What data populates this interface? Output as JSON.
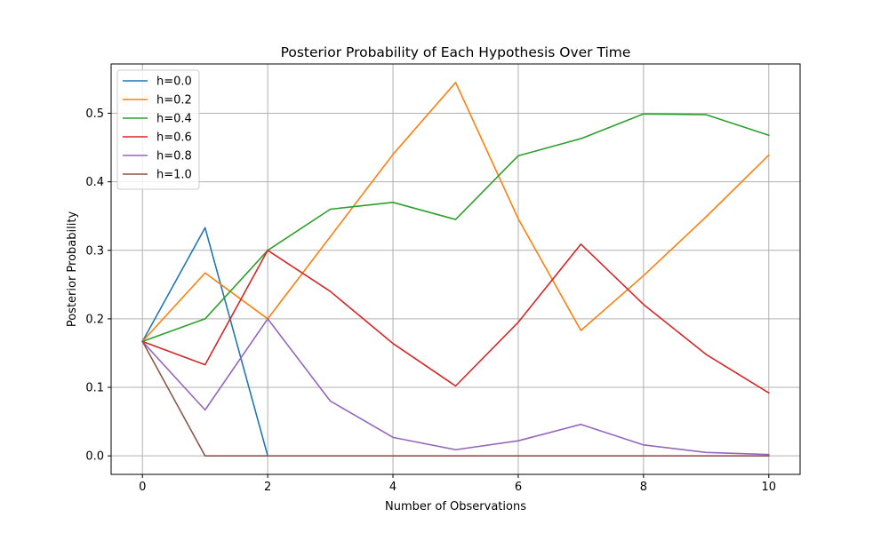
{
  "chart_data": {
    "type": "line",
    "title": "Posterior Probability of Each Hypothesis Over Time",
    "xlabel": "Number of Observations",
    "ylabel": "Posterior Probability",
    "xlim": [
      -0.5,
      10.5
    ],
    "ylim": [
      -0.027,
      0.572
    ],
    "xticks": [
      0,
      2,
      4,
      6,
      8,
      10
    ],
    "yticks": [
      0.0,
      0.1,
      0.2,
      0.3,
      0.4,
      0.5
    ],
    "xtick_labels": [
      "0",
      "2",
      "4",
      "6",
      "8",
      "10"
    ],
    "ytick_labels": [
      "0.0",
      "0.1",
      "0.2",
      "0.3",
      "0.4",
      "0.5"
    ],
    "grid": true,
    "legend_position": "top-left",
    "x": [
      0,
      1,
      2,
      3,
      4,
      5,
      6,
      7,
      8,
      9,
      10
    ],
    "series": [
      {
        "name": "h=0.0",
        "color": "#1f77b4",
        "values": [
          0.167,
          0.333,
          0.0,
          null,
          null,
          null,
          null,
          null,
          null,
          null,
          null
        ]
      },
      {
        "name": "h=0.2",
        "color": "#ff7f0e",
        "values": [
          0.167,
          0.267,
          0.2,
          0.32,
          0.44,
          0.545,
          0.346,
          0.183,
          0.263,
          0.349,
          0.439
        ]
      },
      {
        "name": "h=0.4",
        "color": "#2ca02c",
        "values": [
          0.167,
          0.2,
          0.3,
          0.36,
          0.37,
          0.345,
          0.438,
          0.463,
          0.499,
          0.498,
          0.468
        ]
      },
      {
        "name": "h=0.6",
        "color": "#d62728",
        "values": [
          0.167,
          0.133,
          0.3,
          0.24,
          0.164,
          0.102,
          0.195,
          0.309,
          0.221,
          0.148,
          0.092
        ]
      },
      {
        "name": "h=0.8",
        "color": "#9467bd",
        "values": [
          0.167,
          0.067,
          0.2,
          0.08,
          0.027,
          0.009,
          0.022,
          0.046,
          0.016,
          0.005,
          0.002
        ]
      },
      {
        "name": "h=1.0",
        "color": "#8c564b",
        "values": [
          0.167,
          0.0,
          0.0,
          0.0,
          0.0,
          0.0,
          0.0,
          0.0,
          0.0,
          0.0,
          0.0
        ]
      }
    ]
  }
}
